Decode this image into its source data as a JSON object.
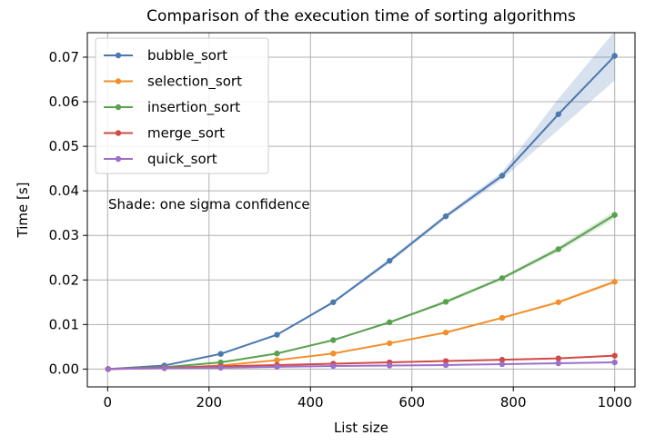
{
  "chart_data": {
    "type": "line",
    "title": "Comparison of the execution time of sorting algorithms",
    "xlabel": "List size",
    "ylabel": "Time [s]",
    "xlim": [
      -40,
      1040
    ],
    "ylim": [
      -0.004,
      0.0755
    ],
    "xticks": [
      0,
      200,
      400,
      600,
      800,
      1000
    ],
    "yticks": [
      0.0,
      0.01,
      0.02,
      0.03,
      0.04,
      0.05,
      0.06,
      0.07
    ],
    "xtick_labels": [
      "0",
      "200",
      "400",
      "600",
      "800",
      "1000"
    ],
    "ytick_labels": [
      "0.00",
      "0.01",
      "0.02",
      "0.03",
      "0.04",
      "0.05",
      "0.06",
      "0.07"
    ],
    "grid": true,
    "legend_position": "top-left",
    "annotation": "Shade: one sigma confidence",
    "x": [
      1,
      112,
      223,
      334,
      445,
      556,
      667,
      778,
      889,
      1000
    ],
    "series": [
      {
        "name": "bubble_sort",
        "color": "#4c78b0",
        "values": [
          0.0,
          0.0008,
          0.0034,
          0.0077,
          0.015,
          0.0243,
          0.0343,
          0.0434,
          0.0572,
          0.0703
        ],
        "sigma": [
          0.0,
          0.0001,
          0.0002,
          0.0002,
          0.0003,
          0.0005,
          0.0005,
          0.0008,
          0.0035,
          0.0055
        ]
      },
      {
        "name": "selection_sort",
        "color": "#f28e2b",
        "values": [
          0.0,
          0.0002,
          0.0008,
          0.002,
          0.0035,
          0.0058,
          0.0082,
          0.0115,
          0.015,
          0.0196
        ],
        "sigma": [
          0.0,
          0.0,
          0.0,
          0.0001,
          0.0001,
          0.0001,
          0.0002,
          0.0002,
          0.0003,
          0.0004
        ]
      },
      {
        "name": "insertion_sort",
        "color": "#59a14f",
        "values": [
          0.0,
          0.0004,
          0.0015,
          0.0035,
          0.0065,
          0.0105,
          0.0151,
          0.0204,
          0.0269,
          0.0346
        ],
        "sigma": [
          0.0,
          0.0,
          0.0001,
          0.0001,
          0.0002,
          0.0002,
          0.0004,
          0.0004,
          0.0006,
          0.0008
        ]
      },
      {
        "name": "merge_sort",
        "color": "#d04a45",
        "values": [
          0.0,
          0.0003,
          0.0006,
          0.0009,
          0.0012,
          0.0015,
          0.0018,
          0.0021,
          0.0024,
          0.003
        ],
        "sigma": [
          0.0,
          0.0,
          0.0,
          0.0001,
          0.0001,
          0.0001,
          0.0001,
          0.0001,
          0.0001,
          0.0002
        ]
      },
      {
        "name": "quick_sort",
        "color": "#9c6fc9",
        "values": [
          0.0,
          0.0002,
          0.0003,
          0.0005,
          0.0007,
          0.0008,
          0.0009,
          0.0011,
          0.0013,
          0.0015
        ],
        "sigma": [
          0.0,
          0.0,
          0.0,
          0.0,
          0.0,
          0.0001,
          0.0001,
          0.0001,
          0.0001,
          0.0001
        ]
      }
    ]
  }
}
